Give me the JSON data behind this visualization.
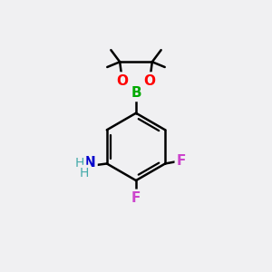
{
  "background_color": "#f0f0f2",
  "bond_color": "#000000",
  "bond_width": 1.8,
  "figsize": [
    3.0,
    3.0
  ],
  "dpi": 100,
  "xlim": [
    0,
    10
  ],
  "ylim": [
    0,
    10
  ],
  "colors": {
    "B": "#00aa00",
    "O": "#ff0000",
    "N": "#0000cc",
    "F": "#cc44cc",
    "H": "#44aaaa",
    "C": "#000000"
  }
}
